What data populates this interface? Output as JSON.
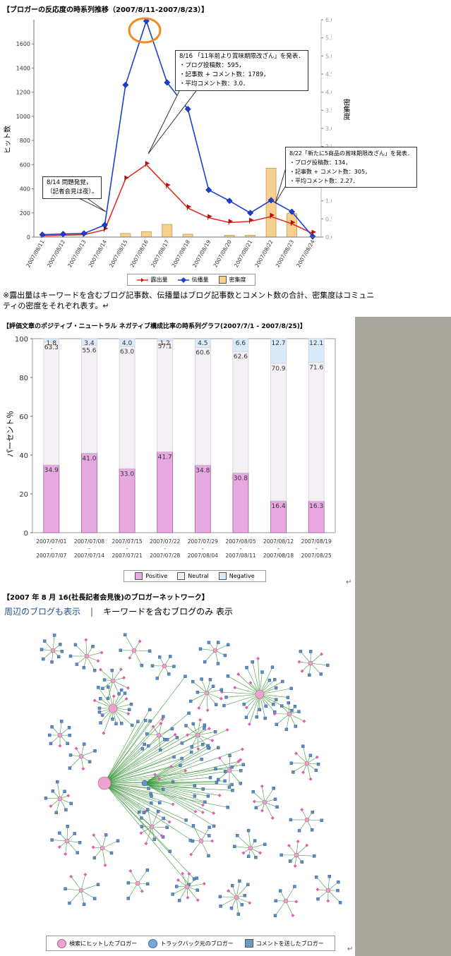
{
  "chart1": {
    "title": "【ブロガーの反応度の時系列推移（2007/8/11-2007/8/23）】",
    "ylabel": "ヒット数",
    "y2label": "密集度",
    "y_ticks": [
      "0",
      "200",
      "400",
      "600",
      "800",
      "1000",
      "1200",
      "1400",
      "1600"
    ],
    "y2_ticks": [
      "0.0",
      "0.5",
      "1.0",
      "1.5",
      "2.0",
      "2.5",
      "3.0",
      "3.5",
      "4.0",
      "4.5",
      "5.0",
      "5.5",
      "6.0"
    ],
    "callouts": {
      "c1": {
        "l1": "8/14 問題発覚，",
        "l2": "（記者会見は夜）。"
      },
      "c2": {
        "l1": "8/16 「11年前より賞味期限改ざん」を発表．",
        "l2": "・ブログ投稿数：595，",
        "l3": "・記事数 + コメント数：1789，",
        "l4": "・平均コメント数：3.0．"
      },
      "c3": {
        "l1": "8/22「新たに5商品の賞味期限改ざん」を発表．",
        "l2": "・ブログ投稿数：134，",
        "l3": "・記事数 + コメント数：305，",
        "l4": "・平均コメント数：2.27．"
      }
    },
    "legend": {
      "s1": "露出量",
      "s2": "伝播量",
      "s3": "密集度"
    }
  },
  "note": {
    "l1": "※露出量はキーワードを含むブログ記事数、伝播量はブログ記事数とコメント数の合計、密集度はコミュニ",
    "l2": "ティの密度をそれぞれ表す。↵"
  },
  "chart2": {
    "title": "【評価文章のポジティブ・ニュートラル ネガティブ構成比率の時系列グラフ(2007/7/1 - 2007/8/25)】",
    "ylabel": "パーセント％",
    "y_ticks": [
      "0",
      "20",
      "40",
      "60",
      "80",
      "100"
    ],
    "legend": {
      "pos": "Positive",
      "neu": "Neutral",
      "neg": "Negative"
    }
  },
  "chart3": {
    "title": "【2007 年 8 月 16(社長記者会見後)のブロガーネットワーク】",
    "link1": "周辺のブログも表示",
    "sep": "|",
    "link2": "キーワードを含むブログのみ 表示",
    "legend": {
      "a": "検索にヒットしたブロガー",
      "b": "トラックバック元のブロガー",
      "c": "コメントを送したブロガー"
    }
  },
  "chart_data": [
    {
      "type": "line",
      "title": "【ブロガーの反応度の時系列推移（2007/8/11-2007/8/23）】",
      "x": [
        "2007/08/11",
        "2007/08/12",
        "2007/08/13",
        "2007/08/14",
        "2007/08/15",
        "2007/08/16",
        "2007/08/17",
        "2007/08/18",
        "2007/08/19",
        "2007/08/20",
        "2007/08/21",
        "2007/08/22",
        "2007/08/23",
        "2007/08/24"
      ],
      "ylabel": "ヒット数",
      "ylim": [
        0,
        1800
      ],
      "y2label": "密集度",
      "y2lim": [
        0,
        6.0
      ],
      "series": [
        {
          "name": "露出量",
          "axis": "left",
          "color": "#e03020",
          "values": [
            10,
            15,
            20,
            60,
            480,
            600,
            420,
            240,
            160,
            120,
            130,
            170,
            110,
            30
          ]
        },
        {
          "name": "伝播量",
          "axis": "left",
          "color": "#1c3fd8",
          "values": [
            20,
            25,
            30,
            100,
            1260,
            1790,
            1280,
            1060,
            390,
            300,
            200,
            305,
            210,
            5
          ]
        },
        {
          "name": "密集度",
          "axis": "right",
          "type": "bar",
          "color": "#f7cf8f",
          "values": [
            0,
            0,
            0,
            0,
            0.1,
            0.15,
            0.35,
            0.08,
            0,
            0.05,
            0.05,
            1.9,
            0.65,
            0
          ]
        }
      ]
    },
    {
      "type": "bar",
      "stacked": true,
      "title": "【評価文章のポジティブ・ニュートラル ネガティブ構成比率の時系列グラフ(2007/7/1 - 2007/8/25)】",
      "categories": [
        "2007/07/01 - 2007/07/07",
        "2007/07/08 - 2007/07/14",
        "2007/07/15 - 2007/07/21",
        "2007/07/22 - 2007/07/28",
        "2007/07/29 - 2007/08/04",
        "2007/08/05 - 2007/08/11",
        "2007/08/12 - 2007/08/18",
        "2007/08/19 - 2007/08/25"
      ],
      "cat_top": [
        "2007/07/01",
        "2007/07/08",
        "2007/07/15",
        "2007/07/22",
        "2007/07/29",
        "2007/08/05",
        "2007/08/12",
        "2007/08/19"
      ],
      "cat_bottom": [
        "2007/07/07",
        "2007/07/14",
        "2007/07/21",
        "2007/07/28",
        "2007/08/04",
        "2007/08/11",
        "2007/08/18",
        "2007/08/25"
      ],
      "ylabel": "パーセント％",
      "ylim": [
        0,
        100
      ],
      "series": [
        {
          "name": "Positive",
          "color": "#e7a9e0",
          "values": [
            34.9,
            41.0,
            33.0,
            41.7,
            34.8,
            30.8,
            16.4,
            16.3
          ]
        },
        {
          "name": "Neutral",
          "color": "#f4f0f4",
          "values": [
            63.3,
            55.6,
            63.0,
            57.1,
            60.6,
            62.6,
            70.9,
            71.6
          ]
        },
        {
          "name": "Negative",
          "color": "#d9ebf8",
          "values": [
            1.8,
            3.4,
            4.0,
            1.2,
            4.5,
            6.6,
            12.7,
            12.1
          ]
        }
      ]
    }
  ]
}
